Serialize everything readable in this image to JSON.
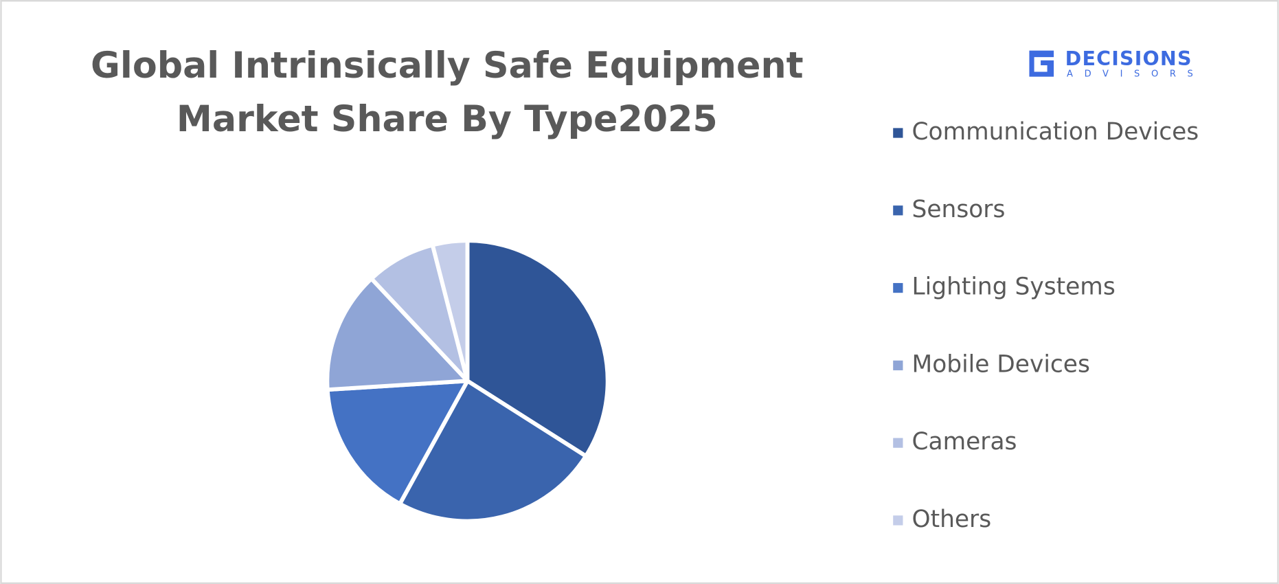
{
  "chart_data": {
    "type": "pie",
    "title": "Global Intrinsically Safe Equipment Market Share By Type2025",
    "categories": [
      "Communication Devices",
      "Sensors",
      "Lighting Systems",
      "Mobile Devices",
      "Cameras",
      "Others"
    ],
    "values": [
      34,
      24,
      16,
      14,
      8,
      4
    ],
    "colors": [
      "#2f5597",
      "#3a64ad",
      "#4472c4",
      "#8fa5d6",
      "#b3c0e3",
      "#c4cde9"
    ],
    "legend": "right"
  },
  "logo": {
    "name": "DECISIONS",
    "tagline": "ADVISORS"
  }
}
